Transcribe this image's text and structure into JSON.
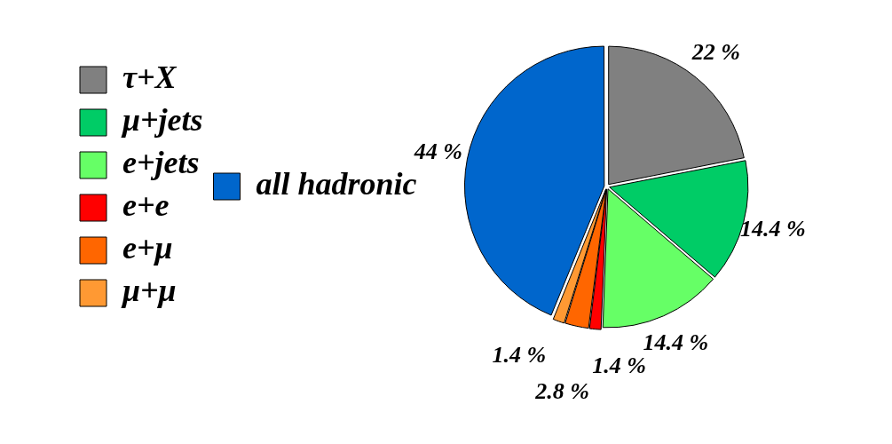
{
  "chart_data": {
    "type": "pie",
    "categories": [
      "τ+X",
      "μ+jets",
      "e+jets",
      "e+e",
      "e+μ",
      "μ+μ",
      "all hadronic"
    ],
    "values": [
      22,
      14.4,
      14.4,
      1.4,
      2.8,
      1.4,
      44
    ],
    "colors": [
      "#808080",
      "#00cc66",
      "#66ff66",
      "#ff0000",
      "#ff6600",
      "#ff9933",
      "#0066cc"
    ],
    "value_labels": [
      "22 %",
      "14.4 %",
      "14.4 %",
      "1.4 %",
      "2.8 %",
      "1.4 %",
      "44 %"
    ],
    "legend": "left"
  }
}
